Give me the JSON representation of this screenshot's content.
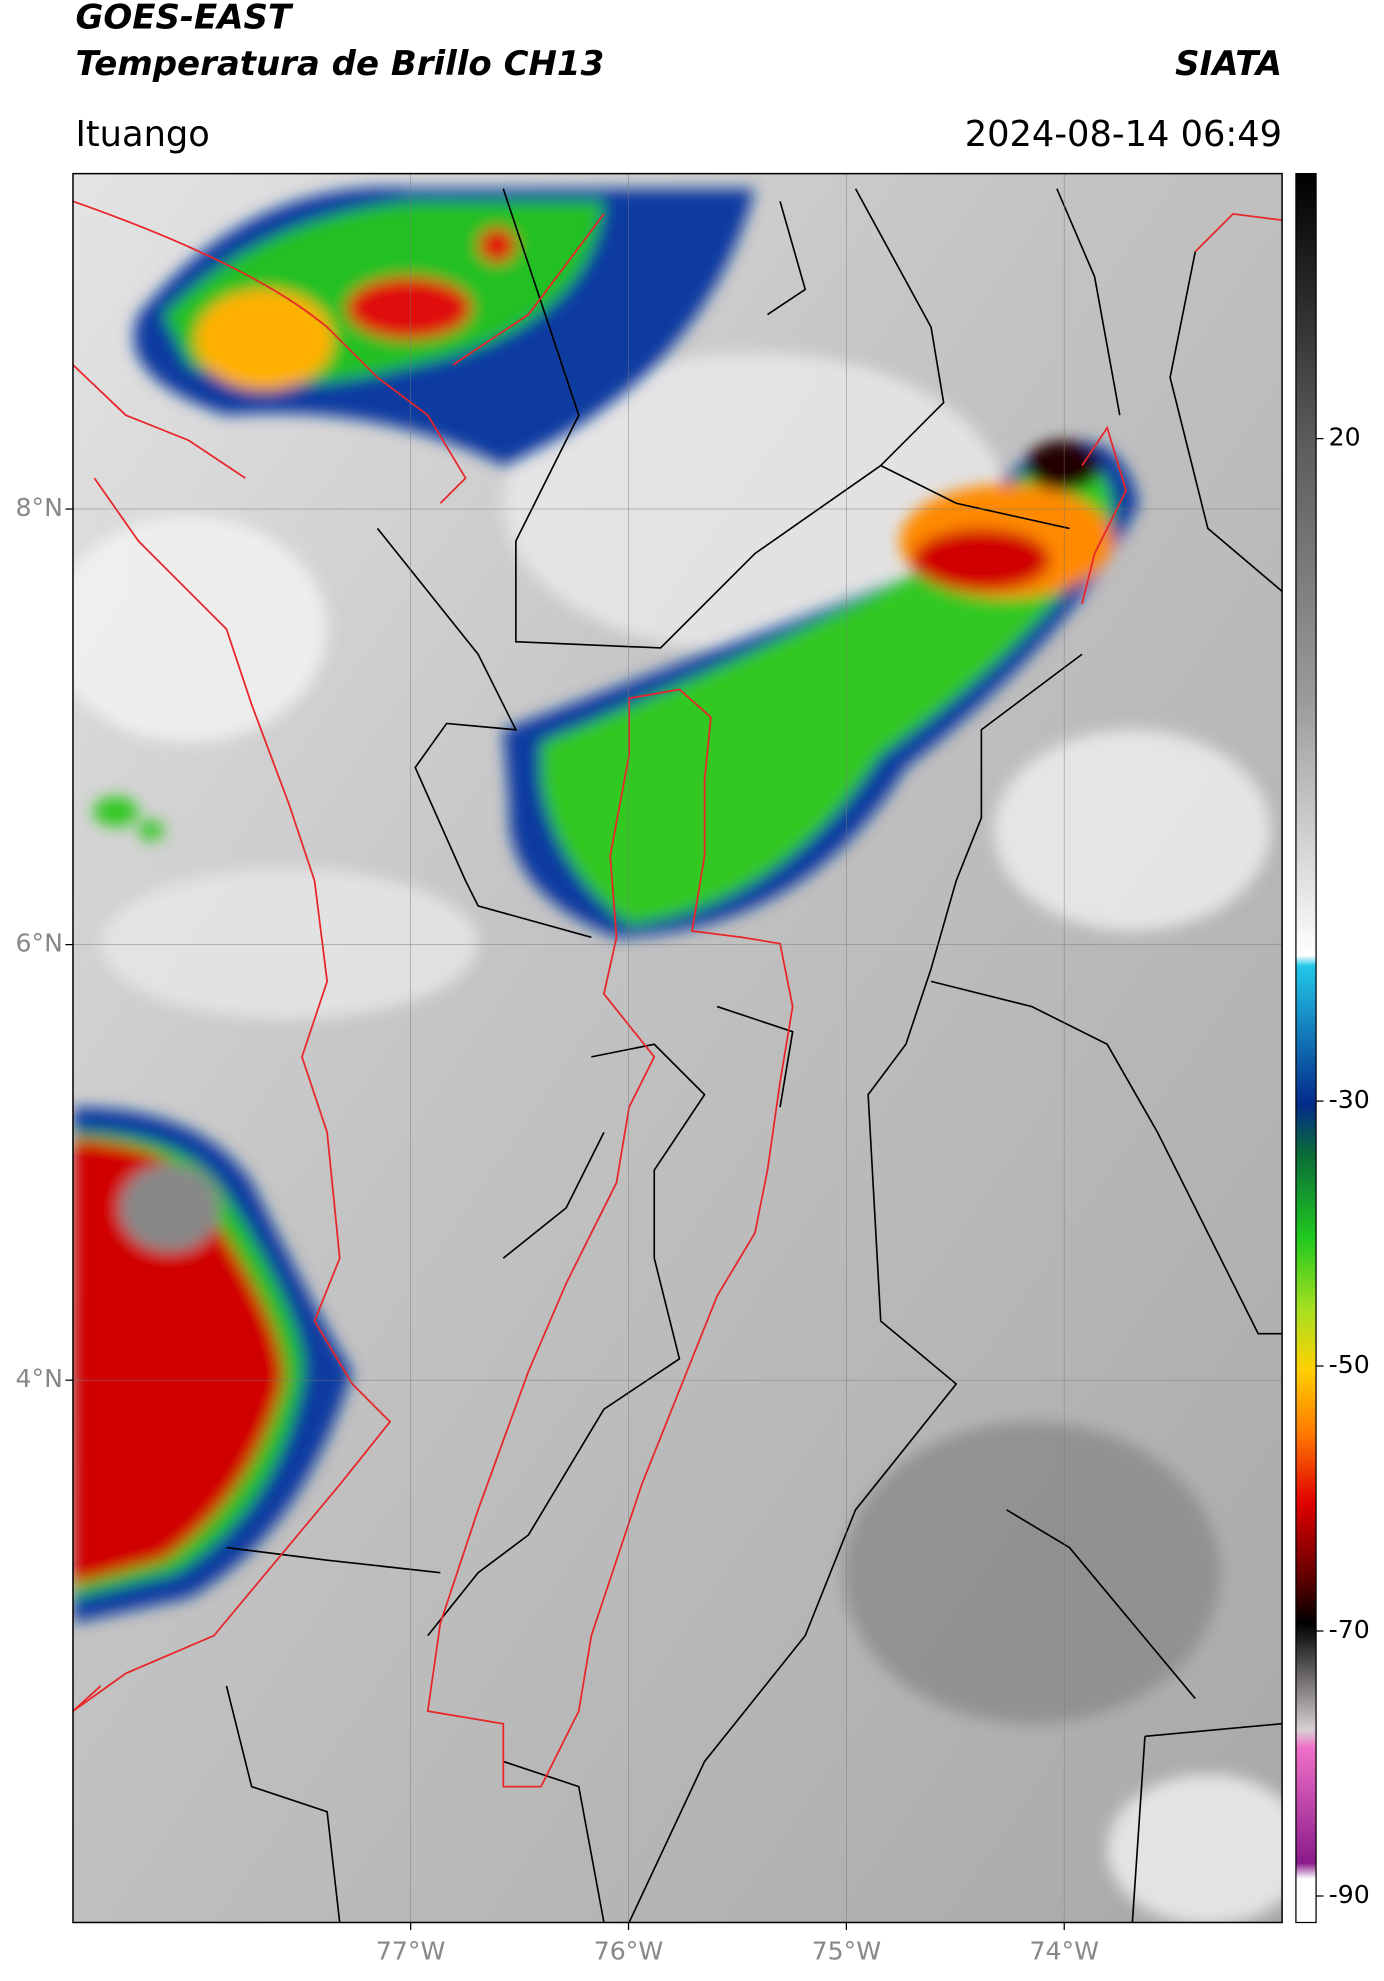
{
  "header": {
    "title": "GOES-EAST",
    "subtitle": "Temperatura de Brillo CH13",
    "agency": "SIATA",
    "location": "Ituango",
    "datetime": "2024-08-14 06:49"
  },
  "map": {
    "xlim": [
      -78.55,
      -73.0
    ],
    "ylim": [
      1.51,
      9.54
    ],
    "xticks": [
      {
        "value": -77,
        "label": "77°W"
      },
      {
        "value": -76,
        "label": "76°W"
      },
      {
        "value": -75,
        "label": "75°W"
      },
      {
        "value": -74,
        "label": "74°W"
      }
    ],
    "yticks": [
      {
        "value": 4,
        "label": "4°N"
      },
      {
        "value": 6,
        "label": "6°N"
      },
      {
        "value": 8,
        "label": "8°N"
      }
    ],
    "grid": true
  },
  "colorbar": {
    "range": [
      -92,
      40
    ],
    "ticks": [
      20,
      -30,
      -50,
      -70,
      -90
    ]
  }
}
